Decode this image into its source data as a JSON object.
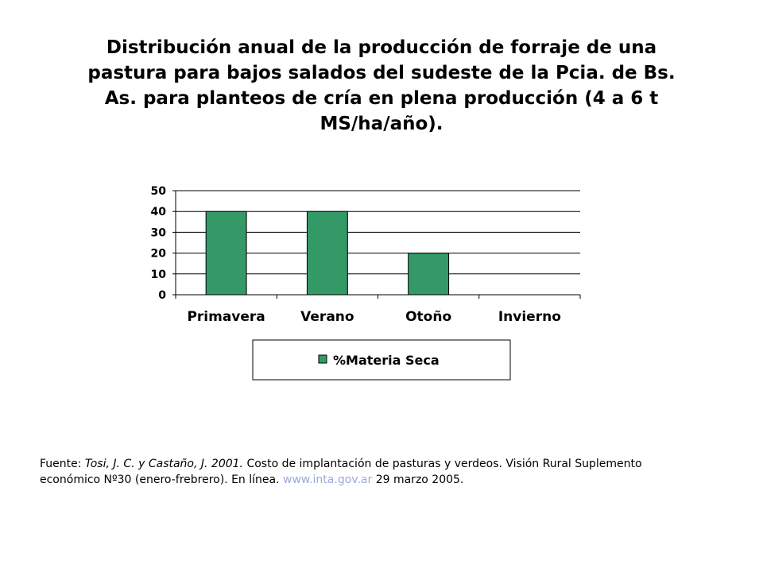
{
  "title_lines": [
    "Distribución anual de la producción de forraje de una",
    "pastura para bajos salados del sudeste de la Pcia. de Bs.",
    "As. para planteos de cría en plena producción (4 a 6 t",
    "MS/ha/año)."
  ],
  "chart_data": {
    "type": "bar",
    "categories": [
      "Primavera",
      "Verano",
      "Otoño",
      "Invierno"
    ],
    "series": [
      {
        "name": "%Materia Seca",
        "values": [
          40,
          40,
          20,
          0
        ]
      }
    ],
    "ylim": [
      0,
      50
    ],
    "yticks": [
      0,
      10,
      20,
      30,
      40,
      50
    ],
    "grid": true,
    "legend_position": "bottom",
    "bar_color": "#339966"
  },
  "source": {
    "prefix": "Fuente: ",
    "authors": "Tosi, J. C. y Castaño, J. 2001.",
    "text": " Costo de implantación de pasturas y verdeos. Visión Rural Suplemento económico Nº30 (enero-frebrero). En línea. ",
    "link": "www.inta.gov.ar",
    "date": " 29 marzo 2005."
  }
}
